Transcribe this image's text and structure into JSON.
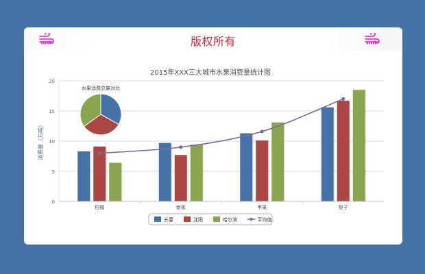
{
  "header": {
    "title": "版权所有",
    "left_icon": "wind-icon",
    "right_icon": "wind-icon",
    "icon_color": "#e619d4",
    "title_color": "#e0203a"
  },
  "chart_data": {
    "type": "bar",
    "title": "2015年XXX三大城市水果消费量统计图",
    "xlabel": "",
    "ylabel": "消费量（万吨）",
    "ylim": [
      0,
      20
    ],
    "yticks": [
      0,
      5,
      10,
      15,
      20
    ],
    "grid": true,
    "legend_position": "bottom",
    "categories": [
      "柑橘",
      "香蕉",
      "苹果",
      "梨子"
    ],
    "series": [
      {
        "name": "长春",
        "type": "bar",
        "color": "#4572a7",
        "values": [
          8.3,
          9.7,
          11.3,
          15.6
        ]
      },
      {
        "name": "沈阳",
        "type": "bar",
        "color": "#aa4643",
        "values": [
          9.1,
          7.7,
          10.1,
          16.7
        ]
      },
      {
        "name": "哈尔滨",
        "type": "bar",
        "color": "#89a54e",
        "values": [
          6.4,
          9.4,
          13.1,
          18.5
        ]
      },
      {
        "name": "平均值",
        "type": "line",
        "color": "#80699b",
        "values": [
          8.0,
          9.0,
          11.6,
          17.0
        ]
      }
    ],
    "inset_pie": {
      "title": "水果消费总量对比",
      "slices": [
        {
          "name": "长春",
          "value": 44.9,
          "color": "#4572a7"
        },
        {
          "name": "沈阳",
          "value": 43.6,
          "color": "#aa4643"
        },
        {
          "name": "哈尔滨",
          "value": 47.4,
          "color": "#89a54e"
        }
      ]
    }
  }
}
